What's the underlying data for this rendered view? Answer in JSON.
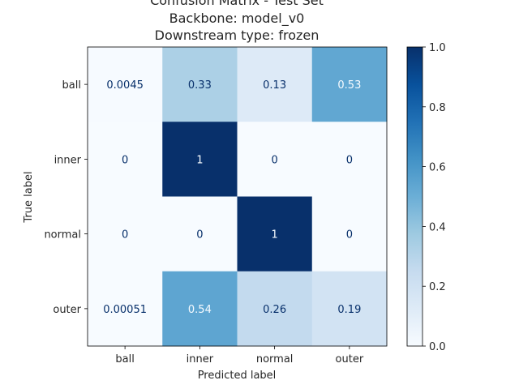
{
  "chart_data": {
    "type": "heatmap",
    "title_lines": [
      "Confusion Matrix - Test Set",
      "Backbone: model_v0",
      "Downstream type: frozen"
    ],
    "xlabel": "Predicted label",
    "ylabel": "True label",
    "x_categories": [
      "ball",
      "inner",
      "normal",
      "outer"
    ],
    "y_categories": [
      "ball",
      "inner",
      "normal",
      "outer"
    ],
    "values": [
      [
        0.0045,
        0.33,
        0.13,
        0.53
      ],
      [
        0,
        1,
        0,
        0
      ],
      [
        0,
        0,
        1,
        0
      ],
      [
        0.00051,
        0.54,
        0.26,
        0.19
      ]
    ],
    "value_labels": [
      [
        "0.0045",
        "0.33",
        "0.13",
        "0.53"
      ],
      [
        "0",
        "1",
        "0",
        "0"
      ],
      [
        "0",
        "0",
        "1",
        "0"
      ],
      [
        "0.00051",
        "0.54",
        "0.26",
        "0.19"
      ]
    ],
    "colormap": "Blues",
    "vmin": 0,
    "vmax": 1,
    "colorbar_ticks": [
      "0.0",
      "0.2",
      "0.4",
      "0.6",
      "0.8",
      "1.0"
    ]
  }
}
